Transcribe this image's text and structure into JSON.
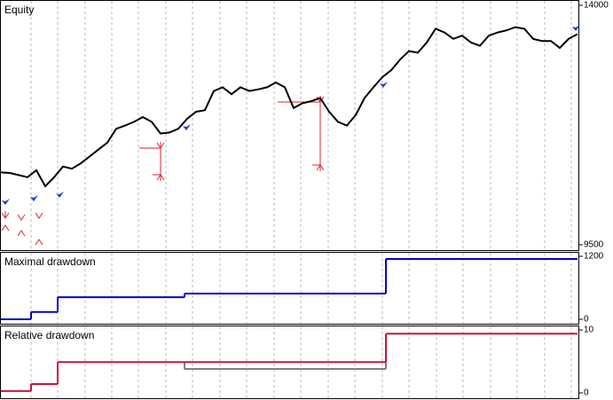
{
  "chart_data": [
    {
      "type": "line",
      "title": "Equity",
      "x": [
        0,
        1,
        2,
        3,
        4,
        5,
        6,
        7,
        8,
        9,
        10,
        11,
        12,
        13,
        14,
        15,
        16,
        17,
        18,
        19,
        20,
        21,
        22,
        23,
        24,
        25,
        26,
        27,
        28,
        29,
        30,
        31,
        32,
        33,
        34,
        35,
        36,
        37,
        38,
        39,
        40,
        41,
        42,
        43,
        44,
        45,
        46,
        47,
        48,
        49,
        50,
        51,
        52,
        53,
        54,
        55,
        56,
        57,
        58,
        59,
        60,
        61,
        62,
        63,
        64,
        65
      ],
      "series": [
        {
          "name": "Equity",
          "color": "#000000",
          "values": [
            10860,
            10850,
            10810,
            10770,
            10900,
            10600,
            10770,
            10970,
            10930,
            11030,
            11160,
            11290,
            11420,
            11680,
            11740,
            11810,
            11900,
            11810,
            11590,
            11610,
            11680,
            11870,
            12000,
            12030,
            12390,
            12460,
            12330,
            12460,
            12390,
            12420,
            12460,
            12550,
            12460,
            12070,
            12160,
            12200,
            12260,
            12000,
            11810,
            11740,
            11940,
            12260,
            12460,
            12650,
            12780,
            12980,
            13140,
            13110,
            13300,
            13560,
            13490,
            13370,
            13430,
            13300,
            13240,
            13430,
            13490,
            13530,
            13590,
            13560,
            13370,
            13330,
            13330,
            13200,
            13370,
            13460
          ]
        }
      ],
      "xlim": [
        0,
        65.2
      ],
      "xticks": [
        3.4,
        6.4,
        9.5,
        12.5,
        15.5,
        18.6,
        21.6,
        24.7,
        27.7,
        30.8,
        33.8,
        36.9,
        39.9,
        43,
        46,
        49.1,
        52.1,
        55.2,
        58.2,
        61.3,
        64.3
      ],
      "ylim": [
        9500,
        14000
      ],
      "yticks": [
        14000,
        9500
      ],
      "grid": true
    },
    {
      "type": "step",
      "title": "Maximal drawdown",
      "x": [
        0,
        3.4,
        6.4,
        20.7,
        43.4
      ],
      "series": [
        {
          "name": "Maximal drawdown",
          "color": "#0000c8",
          "values": [
            0,
            140,
            420,
            490,
            1150
          ]
        }
      ],
      "xlim": [
        0,
        65.2
      ],
      "xticks": [
        3.4,
        6.4,
        9.5,
        12.5,
        15.5,
        18.6,
        21.6,
        24.7,
        27.7,
        30.8,
        33.8,
        36.9,
        39.9,
        43,
        46,
        49.1,
        52.1,
        55.2,
        58.2,
        61.3,
        64.3
      ],
      "ylim": [
        0,
        1200
      ],
      "yticks": [
        1200,
        0
      ],
      "grid": true
    },
    {
      "type": "step",
      "title": "Relative drawdown",
      "x": [
        0,
        3.4,
        6.4,
        43.4
      ],
      "series": [
        {
          "name": "Relative drawdown",
          "color": "#d0103a",
          "values": [
            0.3,
            1.4,
            4.9,
            9.4
          ]
        }
      ],
      "gray": {
        "color": "#808080",
        "x": [
          20.7,
          43.4
        ],
        "values": [
          3.8,
          3.8
        ]
      },
      "xlim": [
        0,
        65.2
      ],
      "xticks": [
        3.4,
        6.4,
        9.5,
        12.5,
        15.5,
        18.6,
        21.6,
        24.7,
        27.7,
        30.8,
        33.8,
        36.9,
        39.9,
        43,
        46,
        49.1,
        52.1,
        55.2,
        58.2,
        61.3,
        64.3
      ],
      "ylim": [
        0,
        10
      ],
      "yticks": [
        10,
        0
      ],
      "grid": true
    }
  ]
}
